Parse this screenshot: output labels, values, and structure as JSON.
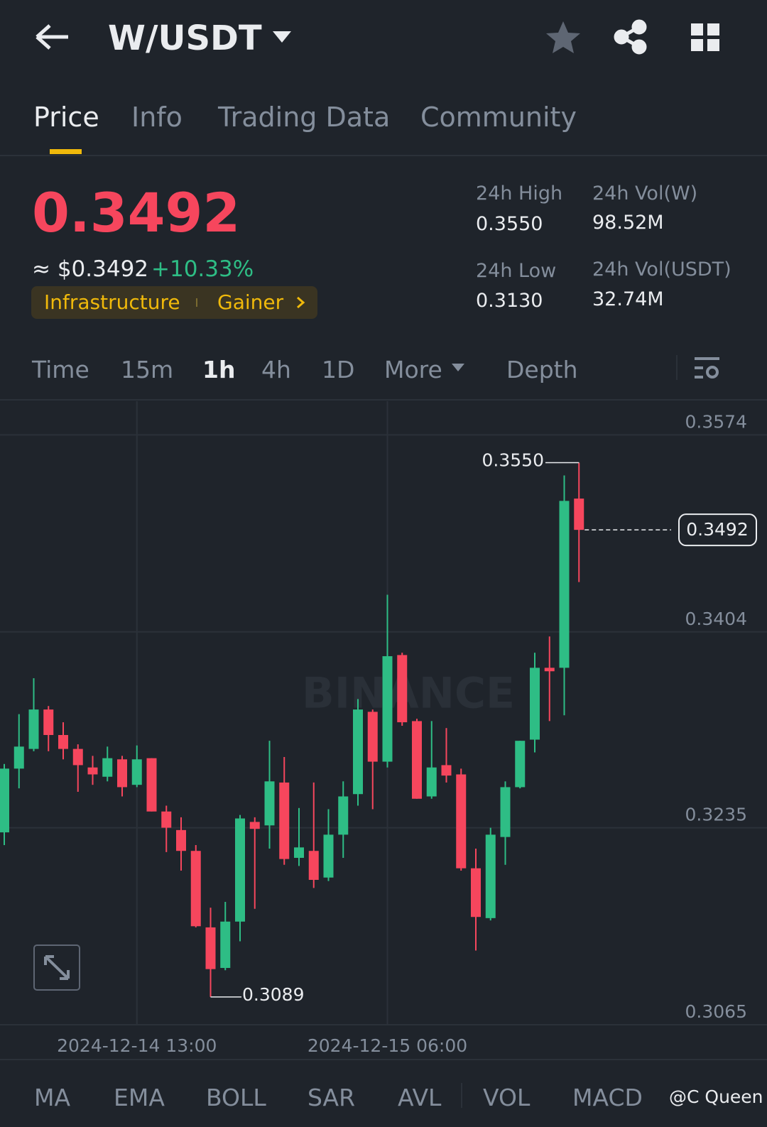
{
  "header": {
    "pair": "W/USDT"
  },
  "tabs": [
    "Price",
    "Info",
    "Trading Data",
    "Community"
  ],
  "price": {
    "last": "0.3492",
    "usd": "≈ $0.3492",
    "change": "+10.33%",
    "tags": [
      "Infrastructure",
      "Gainer"
    ]
  },
  "stats": [
    {
      "label": "24h High",
      "value": "0.3550"
    },
    {
      "label": "24h Vol(W)",
      "value": "98.52M"
    },
    {
      "label": "24h Low",
      "value": "0.3130"
    },
    {
      "label": "24h Vol(USDT)",
      "value": "32.74M"
    }
  ],
  "intervals": [
    "Time",
    "15m",
    "1h",
    "4h",
    "1D",
    "More",
    "Depth"
  ],
  "chart_data": {
    "type": "candlestick",
    "watermark": "BINANCE",
    "categories": [
      null,
      null,
      null,
      null,
      null,
      null,
      null,
      null,
      null,
      "2024-12-14 13:00",
      null,
      null,
      null,
      null,
      null,
      null,
      null,
      null,
      null,
      null,
      null,
      null,
      null,
      null,
      null,
      null,
      "2024-12-15 06:00",
      null,
      null,
      null,
      null,
      null,
      null,
      null,
      null,
      null,
      null,
      null,
      null,
      null
    ],
    "open": [
      0.3231,
      0.3286,
      0.3303,
      0.3337,
      0.3315,
      0.3303,
      0.3287,
      0.3279,
      0.3294,
      0.3272,
      0.3295,
      0.3249,
      0.3233,
      0.3215,
      0.3149,
      0.3114,
      0.3154,
      0.324,
      0.3237,
      0.3274,
      0.3209,
      0.3215,
      0.3192,
      0.3229,
      0.3264,
      0.3335,
      0.3292,
      0.3384,
      0.3327,
      0.3262,
      0.3289,
      0.3281,
      0.32,
      0.3157,
      0.3227,
      0.327,
      0.3311,
      0.3373,
      0.3373,
      0.3519
    ],
    "high": [
      0.329,
      0.3333,
      0.3364,
      0.334,
      0.3326,
      0.3307,
      0.3297,
      0.3305,
      0.3297,
      0.3306,
      0.3295,
      0.3254,
      0.3244,
      0.322,
      0.3166,
      0.3171,
      0.3246,
      0.3244,
      0.331,
      0.3296,
      0.3252,
      0.3274,
      0.3251,
      0.3275,
      0.3346,
      0.3337,
      0.3436,
      0.3386,
      0.3329,
      0.3327,
      0.3321,
      0.3286,
      0.3217,
      0.3235,
      0.3275,
      0.331,
      0.3386,
      0.34,
      0.3539,
      0.355
    ],
    "low": [
      0.322,
      0.3269,
      0.3301,
      0.3301,
      0.3294,
      0.3266,
      0.3272,
      0.3275,
      0.3262,
      0.327,
      0.3249,
      0.3214,
      0.3198,
      0.3149,
      0.3089,
      0.3112,
      0.3137,
      0.3165,
      0.3217,
      0.3203,
      0.3202,
      0.3183,
      0.3189,
      0.3209,
      0.3254,
      0.3251,
      0.3287,
      0.3323,
      0.326,
      0.326,
      0.3274,
      0.3198,
      0.3129,
      0.3155,
      0.3203,
      0.3269,
      0.33,
      0.3327,
      0.3332,
      0.3447
    ],
    "close": [
      0.3286,
      0.3305,
      0.3337,
      0.3315,
      0.3303,
      0.3289,
      0.3281,
      0.3295,
      0.327,
      0.3294,
      0.3249,
      0.3235,
      0.3215,
      0.315,
      0.3113,
      0.3154,
      0.3243,
      0.3234,
      0.3275,
      0.3208,
      0.3218,
      0.319,
      0.3229,
      0.3262,
      0.3337,
      0.3292,
      0.3383,
      0.3326,
      0.326,
      0.3287,
      0.328,
      0.32,
      0.3158,
      0.3229,
      0.327,
      0.331,
      0.3373,
      0.337,
      0.3517,
      0.3492
    ],
    "up_color": "#2ebd85",
    "down_color": "#f6465d",
    "ylim": [
      0.3065,
      0.3603
    ],
    "yticks": [
      0.3574,
      0.3404,
      0.3235,
      0.3065
    ],
    "grid": true,
    "last_price": 0.3492,
    "high_label": {
      "value": 0.355,
      "label": "0.3550"
    },
    "low_label": 0.3089
  },
  "indicators": [
    "MA",
    "EMA",
    "BOLL",
    "SAR",
    "AVL",
    "VOL",
    "MACD"
  ],
  "watermark": "@C Queen"
}
